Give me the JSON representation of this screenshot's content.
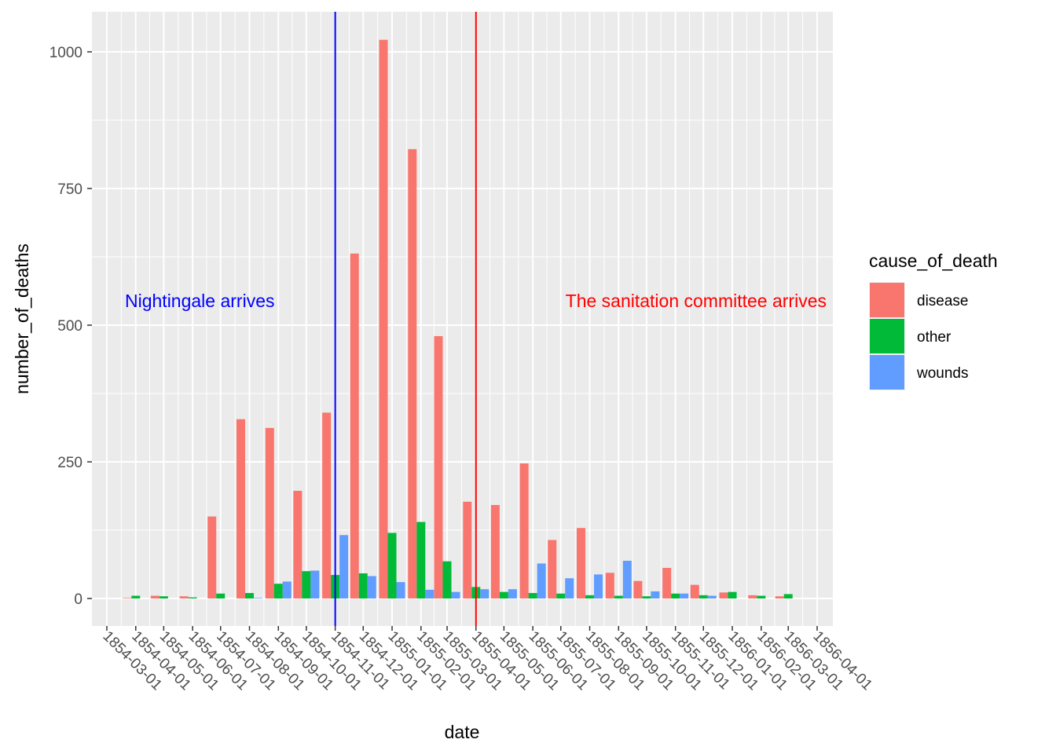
{
  "chart_data": {
    "type": "bar",
    "xlabel": "date",
    "ylabel": "number_of_deaths",
    "ylim": [
      -50,
      1080
    ],
    "yticks": [
      0,
      250,
      500,
      750,
      1000
    ],
    "grid": true,
    "legend_position": "right",
    "legend_title": "cause_of_death",
    "date_ticks": [
      "1854-03-01",
      "1854-04-01",
      "1854-05-01",
      "1854-06-01",
      "1854-07-01",
      "1854-08-01",
      "1854-09-01",
      "1854-10-01",
      "1854-11-01",
      "1854-12-01",
      "1855-01-01",
      "1855-02-01",
      "1855-03-01",
      "1855-04-01",
      "1855-05-01",
      "1855-06-01",
      "1855-07-01",
      "1855-08-01",
      "1855-09-01",
      "1855-10-01",
      "1855-11-01",
      "1855-12-01",
      "1856-01-01",
      "1856-02-01",
      "1856-03-01",
      "1856-04-01"
    ],
    "categories": [
      "1854-04-01",
      "1854-05-01",
      "1854-06-01",
      "1854-07-01",
      "1854-08-01",
      "1854-09-01",
      "1854-10-01",
      "1854-11-01",
      "1854-12-01",
      "1855-01-01",
      "1855-02-01",
      "1855-03-01",
      "1855-04-01",
      "1855-05-01",
      "1855-06-01",
      "1855-07-01",
      "1855-08-01",
      "1855-09-01",
      "1855-10-01",
      "1855-11-01",
      "1855-12-01",
      "1856-01-01",
      "1856-02-01",
      "1856-03-01"
    ],
    "series": [
      {
        "name": "disease",
        "color": "#f8766d",
        "values": [
          1,
          5,
          4,
          150,
          328,
          312,
          197,
          340,
          631,
          1022,
          822,
          480,
          177,
          171,
          247,
          107,
          129,
          47,
          32,
          56,
          25,
          11,
          6,
          4
        ]
      },
      {
        "name": "other",
        "color": "#00ba38",
        "values": [
          5,
          4,
          2,
          9,
          10,
          27,
          50,
          43,
          46,
          120,
          140,
          68,
          21,
          12,
          10,
          9,
          6,
          5,
          4,
          9,
          6,
          12,
          5,
          8
        ]
      },
      {
        "name": "wounds",
        "color": "#619cff",
        "values": [
          0,
          0,
          0,
          0,
          1,
          31,
          51,
          116,
          41,
          30,
          16,
          12,
          17,
          17,
          64,
          37,
          44,
          69,
          13,
          9,
          5,
          0,
          0,
          0
        ]
      }
    ],
    "annotations": [
      {
        "label": "Nightingale arrives",
        "date": "1854-11-01",
        "color": "#0000ff"
      },
      {
        "label": "The sanitation committee arrives",
        "date": "1855-04-01",
        "color": "#ff0000"
      }
    ]
  }
}
